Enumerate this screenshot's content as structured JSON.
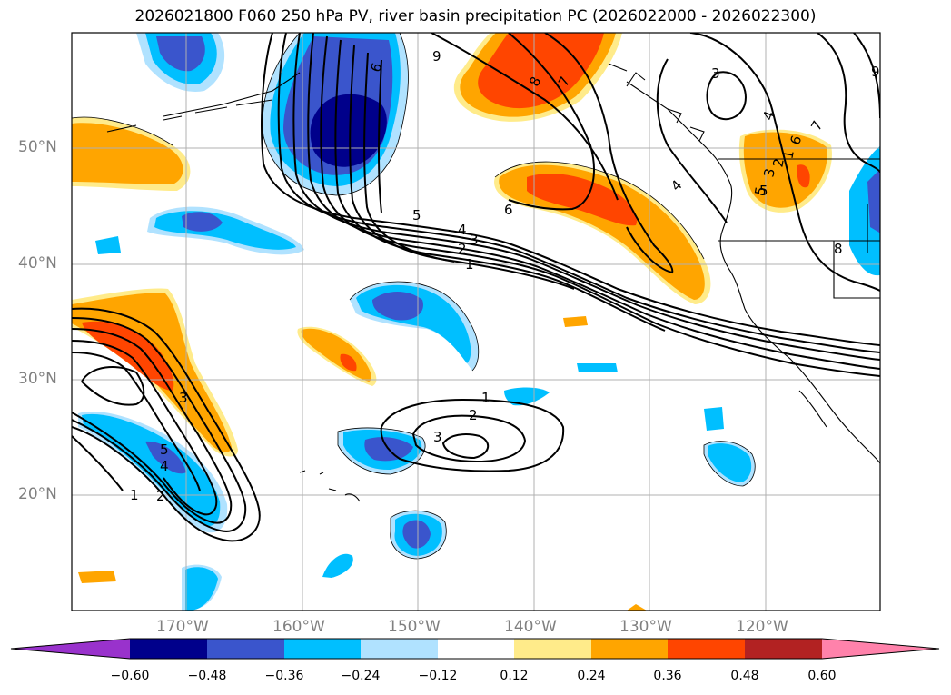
{
  "title": "2026021800 F060 250 hPa PV, river basin precipitation PC (2026022000 - 2026022300)",
  "lat_labels": [
    "50°N",
    "40°N",
    "30°N",
    "20°N"
  ],
  "lon_labels": [
    "170°W",
    "160°W",
    "150°W",
    "140°W",
    "130°W",
    "120°W"
  ],
  "colorbar": {
    "ticks": [
      "−0.60",
      "−0.48",
      "−0.36",
      "−0.24",
      "−0.12",
      "0.12",
      "0.24",
      "0.36",
      "0.48",
      "0.60"
    ],
    "colors": [
      "#9932cc",
      "#00008b",
      "#3a55cc",
      "#00bfff",
      "#b0e2ff",
      "#ffffff",
      "#ffeb8a",
      "#ffa500",
      "#ff4500",
      "#b22222",
      "#ff82ab"
    ]
  },
  "pv_labels": [
    "9",
    "8",
    "7",
    "3",
    "4",
    "6",
    "5",
    "6",
    "4",
    "3",
    "2",
    "1",
    "5",
    "4",
    "3",
    "2",
    "1",
    "1",
    "2",
    "3",
    "4",
    "5",
    "3",
    "2",
    "1",
    "7",
    "6",
    "5",
    "8",
    "9"
  ]
}
